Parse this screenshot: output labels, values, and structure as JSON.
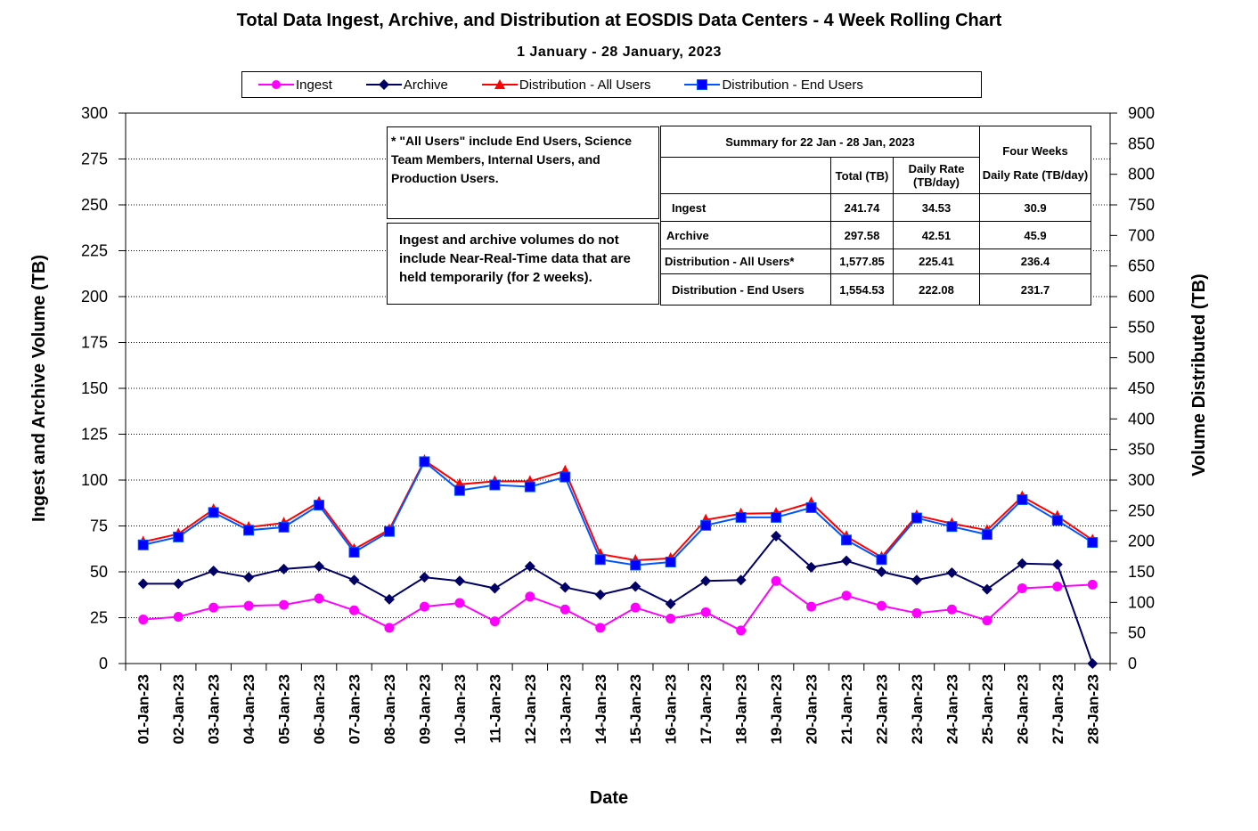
{
  "title": "Total Data Ingest, Archive, and  Distribution at EOSDIS Data Centers - 4 Week Rolling Chart",
  "subtitle": "1  January   -  28  January,  2023",
  "notes": {
    "all_users": "* \"All Users\" include End Users, Science Team Members,  Internal Users, and Production Users.",
    "nrt": "Ingest and archive volumes do not include Near-Real-Time data that are held temporarily (for 2 weeks)."
  },
  "summary": {
    "header": "Summary  for  22  Jan   -  28  Jan,  2023",
    "four_weeks": "Four Weeks",
    "col_total": "Total (TB)",
    "col_daily": "Daily Rate (TB/day)",
    "col_fw_daily": "Daily Rate (TB/day)",
    "rows": [
      {
        "label": "Ingest",
        "total": "241.74",
        "daily": "34.53",
        "four_weeks": "30.9"
      },
      {
        "label": "Archive",
        "total": "297.58",
        "daily": "42.51",
        "four_weeks": "45.9"
      },
      {
        "label": "Distribution - All Users*",
        "total": "1,577.85",
        "daily": "225.41",
        "four_weeks": "236.4"
      },
      {
        "label": "Distribution - End Users",
        "total": "1,554.53",
        "daily": "222.08",
        "four_weeks": "231.7"
      }
    ]
  },
  "chart_data": {
    "type": "line",
    "title": "Total Data Ingest, Archive, and  Distribution at EOSDIS Data Centers - 4 Week Rolling Chart",
    "subtitle": "1  January   -  28  January,  2023",
    "xlabel": "Date",
    "ylabel": "Ingest and Archive Volume (TB)",
    "y2label": "Volume Distributed (TB)",
    "ylim": [
      0,
      300
    ],
    "y2lim": [
      0,
      900
    ],
    "yticks": [
      0,
      25,
      50,
      75,
      100,
      125,
      150,
      175,
      200,
      225,
      250,
      275,
      300
    ],
    "y2ticks": [
      0,
      50,
      100,
      150,
      200,
      250,
      300,
      350,
      400,
      450,
      500,
      550,
      600,
      650,
      700,
      750,
      800,
      850,
      900
    ],
    "grid": "horizontal dotted",
    "legend_position": "top",
    "categories": [
      "01-Jan-23",
      "02-Jan-23",
      "03-Jan-23",
      "04-Jan-23",
      "05-Jan-23",
      "06-Jan-23",
      "07-Jan-23",
      "08-Jan-23",
      "09-Jan-23",
      "10-Jan-23",
      "11-Jan-23",
      "12-Jan-23",
      "13-Jan-23",
      "14-Jan-23",
      "15-Jan-23",
      "16-Jan-23",
      "17-Jan-23",
      "18-Jan-23",
      "19-Jan-23",
      "20-Jan-23",
      "21-Jan-23",
      "22-Jan-23",
      "23-Jan-23",
      "24-Jan-23",
      "25-Jan-23",
      "26-Jan-23",
      "27-Jan-23",
      "28-Jan-23"
    ],
    "series": [
      {
        "name": "Ingest",
        "axis": "left",
        "color": "#ff00ff",
        "marker": "circle",
        "values": [
          24,
          25.5,
          30.5,
          31.5,
          32,
          35.5,
          29,
          19.5,
          31,
          33,
          23,
          36.5,
          29.5,
          19.5,
          30.5,
          24.5,
          28,
          18,
          45,
          31,
          37,
          31.5,
          27.5,
          29.5,
          23.5,
          41,
          42,
          43
        ]
      },
      {
        "name": "Archive",
        "axis": "left",
        "color": "#000066",
        "marker": "diamond",
        "values": [
          43.5,
          43.5,
          50.5,
          47,
          51.5,
          53,
          45.5,
          35,
          47,
          45,
          41,
          53,
          41.5,
          37.5,
          42,
          32.5,
          45,
          45.5,
          69.5,
          52.5,
          56,
          50,
          45.5,
          49.5,
          40.5,
          54.5,
          54,
          0
        ]
      },
      {
        "name": "Distribution - All Users",
        "axis": "right",
        "color": "#ff0000",
        "marker": "triangle",
        "values": [
          199,
          212,
          252,
          223,
          230,
          264,
          187,
          219,
          332,
          293,
          298,
          298,
          315,
          179,
          169,
          172,
          235,
          245,
          246,
          263,
          208,
          174,
          242,
          229,
          218,
          273,
          241,
          202
        ]
      },
      {
        "name": "Distribution - End Users",
        "axis": "right",
        "color": "#0055ff",
        "marker": "square",
        "values": [
          194,
          207,
          247,
          218,
          223,
          259,
          182,
          216,
          330,
          283,
          292,
          289,
          305,
          170,
          161,
          166,
          226,
          239,
          239,
          255,
          202,
          170,
          238,
          224,
          211,
          268,
          234,
          198
        ]
      }
    ]
  }
}
